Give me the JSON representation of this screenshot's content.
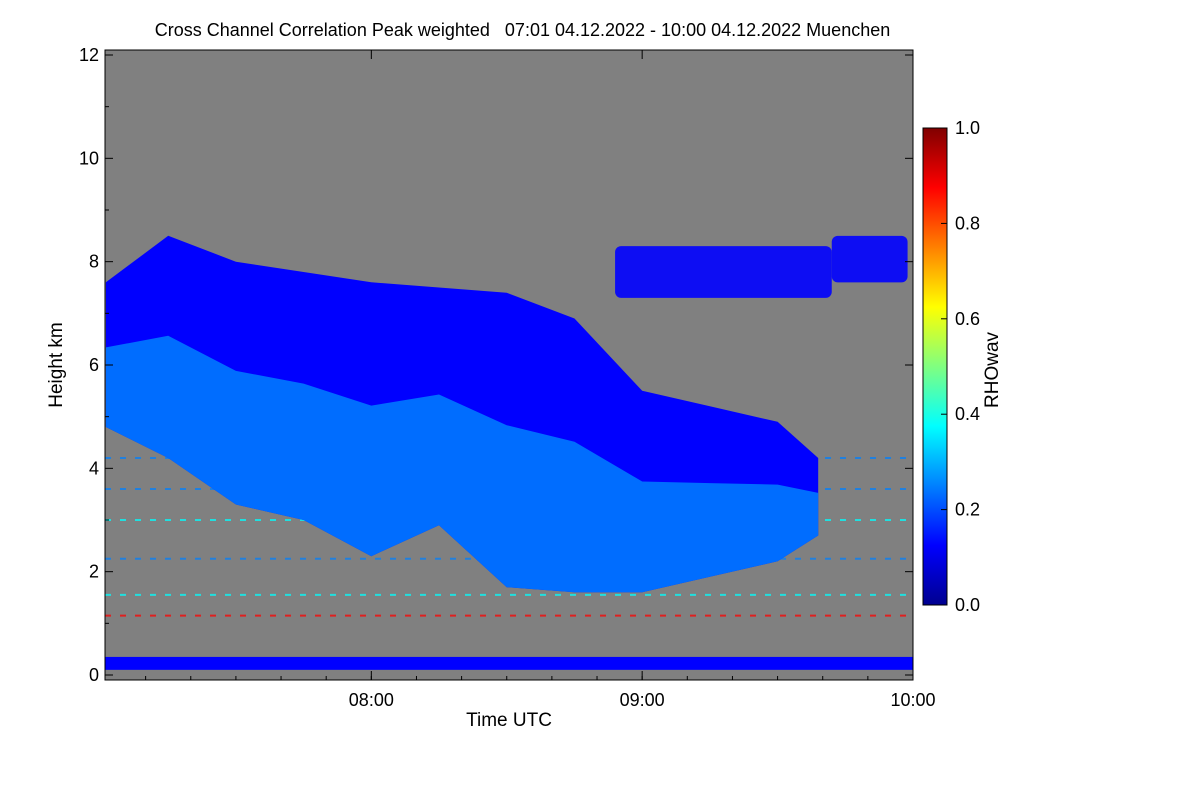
{
  "chart_data": {
    "type": "heatmap",
    "title": "Cross Channel Correlation Peak weighted   07:01 04.12.2022 - 10:00 04.12.2022 Muenchen",
    "xlabel": "Time UTC",
    "ylabel": "Height km",
    "colorbar_label": "RHOwav",
    "x_range": [
      "07:01",
      "10:00"
    ],
    "x_ticks": [
      "08:00",
      "09:00",
      "10:00"
    ],
    "ylim": [
      0,
      12
    ],
    "y_ticks": [
      0,
      2,
      4,
      6,
      8,
      10,
      12
    ],
    "color_range": [
      0.0,
      1.0
    ],
    "colorbar_ticks": [
      "0.0",
      "0.2",
      "0.4",
      "0.6",
      "0.8",
      "1.0"
    ],
    "background_color": "#808080",
    "colormap": [
      "#00008f",
      "#0000ff",
      "#0080ff",
      "#00ffff",
      "#80ff80",
      "#ffff00",
      "#ff8000",
      "#ff0000",
      "#800000"
    ],
    "cloud": {
      "hour": [
        7.02,
        7.25,
        7.5,
        7.75,
        8.0,
        8.25,
        8.5,
        8.75,
        9.0,
        9.25,
        9.5,
        9.65
      ],
      "top_km": [
        7.6,
        8.5,
        8.0,
        7.8,
        7.6,
        7.5,
        7.4,
        6.9,
        5.5,
        5.2,
        4.9,
        4.2
      ],
      "base_km": [
        4.8,
        4.2,
        3.3,
        3.0,
        2.3,
        2.9,
        1.7,
        1.6,
        1.6,
        1.9,
        2.2,
        2.7
      ],
      "core_rhowav": 0.3,
      "upper_rhowav": 0.12
    },
    "upper_patches": [
      {
        "hour_start": 8.9,
        "hour_end": 9.7,
        "bottom_km": 7.3,
        "top_km": 8.3,
        "rhowav": 0.12
      },
      {
        "hour_start": 9.7,
        "hour_end": 9.98,
        "bottom_km": 7.6,
        "top_km": 8.5,
        "rhowav": 0.12
      }
    ],
    "near_surface_band": {
      "bottom_km": 0.1,
      "top_km": 0.35,
      "rhowav": 0.15
    },
    "noise_lines": [
      {
        "height_km": 1.15,
        "rhowav": 0.85
      },
      {
        "height_km": 1.55,
        "rhowav": 0.35
      },
      {
        "height_km": 2.25,
        "rhowav": 0.2
      },
      {
        "height_km": 3.0,
        "rhowav": 0.35
      },
      {
        "height_km": 3.6,
        "rhowav": 0.2
      },
      {
        "height_km": 4.2,
        "rhowav": 0.2
      }
    ]
  }
}
